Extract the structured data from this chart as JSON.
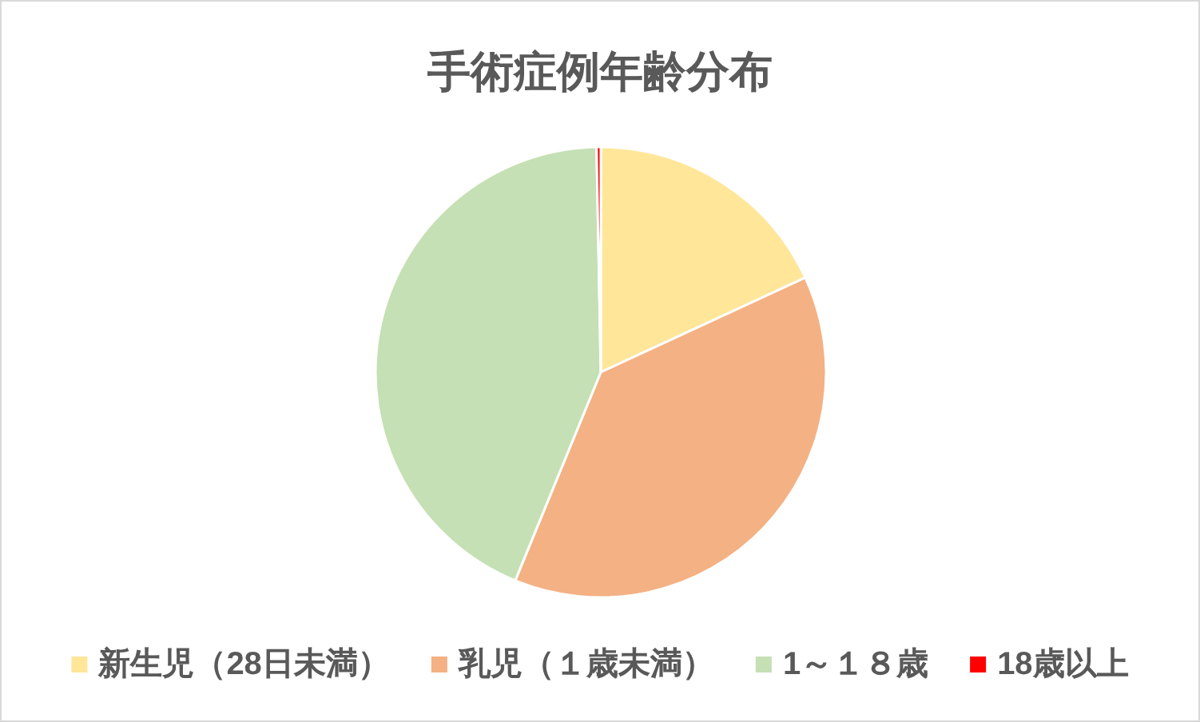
{
  "chart_data": {
    "type": "pie",
    "title": "手術症例年齢分布",
    "categories": [
      "新生児（28日未満）",
      "乳児（１歳未満）",
      "1～１８歳",
      "18歳以上"
    ],
    "values": [
      18.1,
      38.1,
      43.5,
      0.3
    ],
    "colors": [
      "#ffe699",
      "#f4b183",
      "#c5e0b4",
      "#ff0000"
    ],
    "legend": "bottom"
  }
}
